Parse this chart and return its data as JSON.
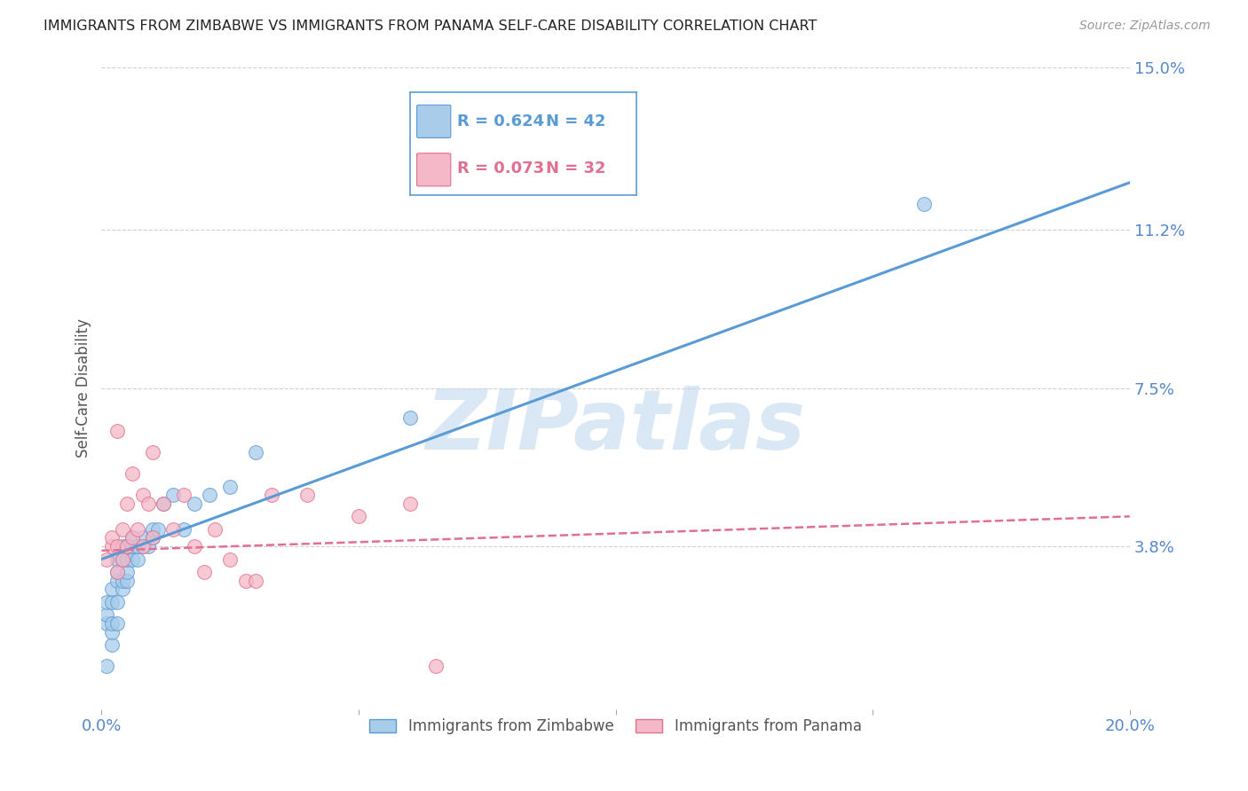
{
  "title": "IMMIGRANTS FROM ZIMBABWE VS IMMIGRANTS FROM PANAMA SELF-CARE DISABILITY CORRELATION CHART",
  "source": "Source: ZipAtlas.com",
  "ylabel": "Self-Care Disability",
  "xlabel": "",
  "xlim": [
    0.0,
    0.2
  ],
  "ylim": [
    0.0,
    0.15
  ],
  "yticks": [
    0.038,
    0.075,
    0.112,
    0.15
  ],
  "ytick_labels": [
    "3.8%",
    "7.5%",
    "11.2%",
    "15.0%"
  ],
  "xticks": [
    0.0,
    0.05,
    0.1,
    0.15,
    0.2
  ],
  "xtick_labels": [
    "0.0%",
    "",
    "",
    "",
    "20.0%"
  ],
  "watermark": "ZIPatlas",
  "zim_color": "#A8CCEA",
  "zim_line_color": "#5B9BD5",
  "pan_color": "#F4B8C8",
  "pan_line_color": "#E07090",
  "zim_R": 0.624,
  "zim_N": 42,
  "pan_R": 0.073,
  "pan_N": 32,
  "zim_x": [
    0.001,
    0.001,
    0.001,
    0.002,
    0.002,
    0.002,
    0.002,
    0.002,
    0.003,
    0.003,
    0.003,
    0.003,
    0.003,
    0.004,
    0.004,
    0.004,
    0.004,
    0.005,
    0.005,
    0.005,
    0.005,
    0.006,
    0.006,
    0.006,
    0.007,
    0.007,
    0.008,
    0.008,
    0.009,
    0.01,
    0.01,
    0.011,
    0.012,
    0.014,
    0.016,
    0.018,
    0.021,
    0.025,
    0.03,
    0.06,
    0.16,
    0.001
  ],
  "zim_y": [
    0.02,
    0.022,
    0.025,
    0.015,
    0.018,
    0.02,
    0.025,
    0.028,
    0.02,
    0.025,
    0.03,
    0.032,
    0.035,
    0.028,
    0.03,
    0.035,
    0.038,
    0.03,
    0.032,
    0.035,
    0.038,
    0.035,
    0.038,
    0.04,
    0.035,
    0.038,
    0.038,
    0.04,
    0.038,
    0.04,
    0.042,
    0.042,
    0.048,
    0.05,
    0.042,
    0.048,
    0.05,
    0.052,
    0.06,
    0.068,
    0.118,
    0.01
  ],
  "pan_x": [
    0.001,
    0.002,
    0.002,
    0.003,
    0.003,
    0.004,
    0.004,
    0.005,
    0.005,
    0.006,
    0.006,
    0.007,
    0.008,
    0.008,
    0.009,
    0.01,
    0.01,
    0.012,
    0.014,
    0.016,
    0.018,
    0.02,
    0.022,
    0.025,
    0.028,
    0.03,
    0.033,
    0.04,
    0.05,
    0.06,
    0.065,
    0.003
  ],
  "pan_y": [
    0.035,
    0.038,
    0.04,
    0.032,
    0.038,
    0.042,
    0.035,
    0.048,
    0.038,
    0.04,
    0.055,
    0.042,
    0.038,
    0.05,
    0.048,
    0.04,
    0.06,
    0.048,
    0.042,
    0.05,
    0.038,
    0.032,
    0.042,
    0.035,
    0.03,
    0.03,
    0.05,
    0.05,
    0.045,
    0.048,
    0.01,
    0.065
  ],
  "background_color": "#ffffff",
  "grid_color": "#d0d0d0",
  "title_color": "#222222",
  "axis_label_color": "#555555",
  "tick_color": "#5588cc",
  "legend_box_color": "#5B9BD5",
  "zim_line_intercept": 0.035,
  "zim_line_slope": 0.44,
  "pan_line_intercept": 0.037,
  "pan_line_slope": 0.04
}
